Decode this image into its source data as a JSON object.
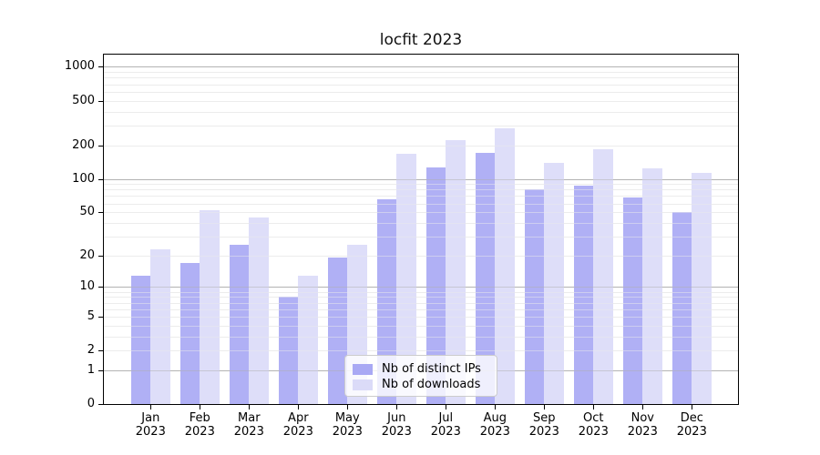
{
  "title": "locfit 2023",
  "chart_data": {
    "type": "bar",
    "title": "locfit 2023",
    "y_scale": "log10(1+x)",
    "categories": [
      "Jan",
      "Feb",
      "Mar",
      "Apr",
      "May",
      "Jun",
      "Jul",
      "Aug",
      "Sep",
      "Oct",
      "Nov",
      "Dec"
    ],
    "x_year_label": "2023",
    "series": [
      {
        "name": "Nb of distinct IPs",
        "color": "#a9a9f4",
        "values": [
          13,
          17,
          25,
          8,
          19,
          66,
          126,
          170,
          80,
          87,
          68,
          50
        ]
      },
      {
        "name": "Nb of downloads",
        "color": "#dbdbf8",
        "values": [
          23,
          52,
          45,
          13,
          25,
          167,
          221,
          281,
          140,
          184,
          124,
          113
        ]
      }
    ],
    "yticks": [
      0,
      1,
      2,
      5,
      10,
      20,
      50,
      100,
      200,
      500,
      1000
    ],
    "ylim": [
      0,
      1300
    ],
    "xlabel": "",
    "ylabel": "",
    "grid": true,
    "gridline_major_values": [
      1,
      10,
      100,
      1000
    ],
    "gridline_minor_values": [
      2,
      3,
      4,
      5,
      6,
      7,
      8,
      9,
      20,
      30,
      40,
      50,
      60,
      70,
      80,
      90,
      200,
      300,
      400,
      500,
      600,
      700,
      800,
      900
    ],
    "legend_position": "lower center",
    "colors": {
      "grid_major": "#b3b3b3",
      "grid_minor": "#ececec",
      "axis": "#000000",
      "background": "#ffffff"
    }
  }
}
